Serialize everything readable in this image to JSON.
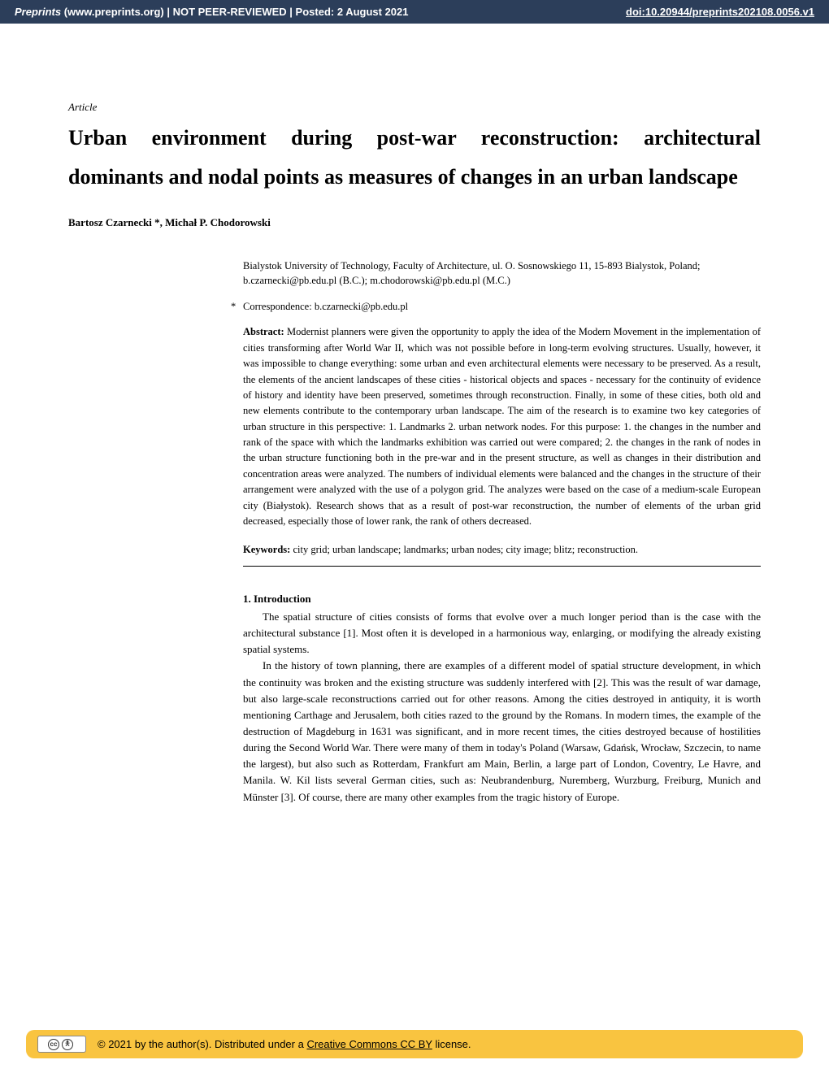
{
  "header": {
    "site_italic": "Preprints",
    "site_rest": " (www.preprints.org)  |  NOT PEER-REVIEWED  |  Posted: 2 August 2021",
    "doi": "doi:10.20944/preprints202108.0056.v1",
    "background_color": "#2c3e5a",
    "text_color": "#ffffff"
  },
  "article": {
    "label": "Article",
    "title": "Urban environment during post-war reconstruction: architectural dominants and nodal points as measures of changes in an urban landscape",
    "authors": "Bartosz Czarnecki *, Michał P. Chodorowski",
    "affiliation_line1": "Bialystok University of Technology, Faculty of Architecture, ul. O. Sosnowskiego 11, 15-893 Bialystok, Poland;",
    "affiliation_line2": "b.czarnecki@pb.edu.pl (B.C.);  m.chodorowski@pb.edu.pl (M.C.)",
    "correspondence": "Correspondence: b.czarnecki@pb.edu.pl"
  },
  "abstract": {
    "label": "Abstract:",
    "text": " Modernist planners were given the opportunity to apply the idea of the Modern Movement in the implementation of cities transforming after World War II, which was not possible before in long-term evolving structures. Usually, however, it was impossible to change everything: some urban and even architectural elements were necessary to be preserved. As a result, the elements of the ancient landscapes of these cities - historical objects and spaces - necessary for the continuity of evidence of history and identity have been preserved, sometimes through reconstruction. Finally, in some of these cities, both old and new elements contribute to the contemporary urban landscape. The aim of the research is to examine two key categories of urban structure in this perspective: 1. Landmarks 2. urban network nodes. For this purpose: 1. the changes in the number and rank of the space with which the landmarks exhibition was carried out were compared; 2. the changes in the rank of nodes in the urban structure functioning both in the pre-war and in the present structure, as well as changes in their distribution and concentration areas were analyzed. The numbers of individual elements were balanced and the changes in the structure of their arrangement were analyzed with the use of a polygon grid. The analyzes were based on the case of a medium-scale European city (Białystok). Research shows that as a result of post-war reconstruction, the number of elements of the urban grid decreased, especially those of lower rank, the rank of others decreased."
  },
  "keywords": {
    "label": "Keywords:",
    "text": " city grid; urban landscape; landmarks; urban nodes; city image; blitz; reconstruction."
  },
  "section": {
    "heading": "1. Introduction",
    "para1": "The spatial structure of cities consists of forms that evolve over a much longer period than is the case with the architectural substance [1]. Most often it is developed in a harmonious way, enlarging, or modifying the already existing spatial systems.",
    "para2": "In the history of town planning, there are examples of a different model of spatial structure development, in which the continuity was broken and the existing structure was suddenly interfered with [2]. This was the result of war damage, but also large-scale reconstructions carried out for other reasons. Among the cities destroyed in antiquity, it is worth mentioning Carthage and Jerusalem, both cities razed to the ground by the Romans. In modern times, the example of the destruction of Magdeburg in 1631 was significant, and in more recent times, the cities destroyed because of hostilities during the Second World War. There were many of them in today's Poland (Warsaw, Gdańsk, Wrocław, Szczecin, to name the largest), but also such as Rotterdam, Frankfurt am Main, Berlin, a large part of London, Coventry, Le Havre, and Manila. W. Kil lists several German cities, such as: Neubrandenburg, Nuremberg, Wurzburg, Freiburg, Munich and Münster [3]. Of course, there are many other examples from the tragic history of Europe."
  },
  "footer": {
    "badge_text": "CC BY",
    "copyright_prefix": "©  2021 by the author(s). Distributed under a ",
    "license_link": "Creative Commons CC BY",
    "copyright_suffix": " license.",
    "background_color": "#f9c440"
  },
  "typography": {
    "body_font_family": "Palatino, Palatino Linotype, Georgia, serif",
    "title_fontsize": 26,
    "body_fontsize": 13,
    "meta_fontsize": 12.5
  }
}
